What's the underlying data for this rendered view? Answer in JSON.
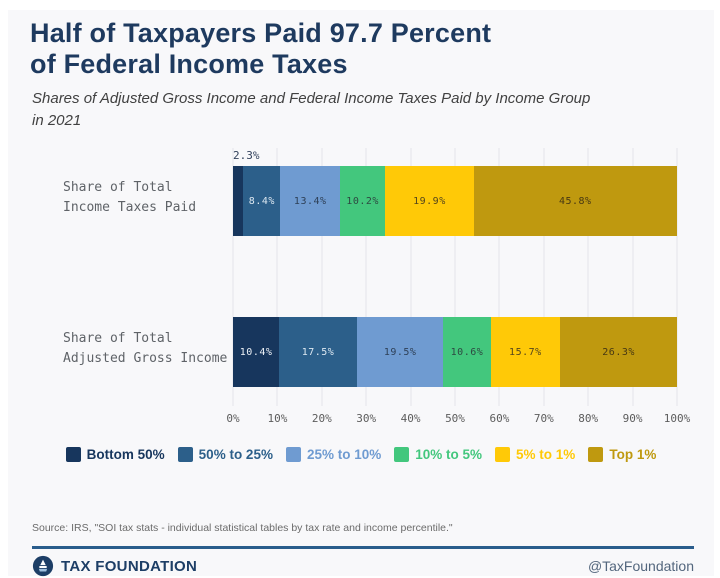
{
  "header": {
    "title": "Half of Taxpayers Paid 97.7 Percent\nof Federal Income Taxes",
    "subtitle": "Shares of Adjusted Gross Income and Federal Income Taxes Paid by Income Group\nin 2021"
  },
  "chart_data": {
    "type": "bar",
    "orientation": "horizontal",
    "stacked": true,
    "unit": "%",
    "categories": [
      "Share of Total\nIncome Taxes Paid",
      "Share of Total\nAdjusted Gross Income"
    ],
    "groups": [
      {
        "name": "Bottom 50%",
        "color": "#17365d",
        "label_color": "#eef2f7"
      },
      {
        "name": "50% to 25%",
        "color": "#2c5f8a",
        "label_color": "#dde8f1"
      },
      {
        "name": "25% to 10%",
        "color": "#6f9bd1",
        "label_color": "#2e4057"
      },
      {
        "name": "10% to 5%",
        "color": "#43c77d",
        "label_color": "#2e4a42"
      },
      {
        "name": "5% to 1%",
        "color": "#ffc907",
        "label_color": "#55461c"
      },
      {
        "name": "Top 1%",
        "color": "#bf990f",
        "label_color": "#473813"
      }
    ],
    "series": [
      {
        "category": "Share of Total Income Taxes Paid",
        "values": [
          2.3,
          8.4,
          13.4,
          10.2,
          19.9,
          45.8
        ]
      },
      {
        "category": "Share of Total Adjusted Gross Income",
        "values": [
          10.4,
          17.5,
          19.5,
          10.6,
          15.7,
          26.3
        ]
      }
    ],
    "x_ticks": [
      "0%",
      "10%",
      "20%",
      "30%",
      "40%",
      "50%",
      "60%",
      "70%",
      "80%",
      "90%",
      "100%"
    ],
    "xlim": [
      0,
      100
    ],
    "grid": true,
    "legend_position": "bottom"
  },
  "footer": {
    "source": "Source: IRS, \"SOI tax stats - individual statistical tables by tax rate and income percentile.\"",
    "brand": "TAX FOUNDATION",
    "handle": "@TaxFoundation"
  }
}
